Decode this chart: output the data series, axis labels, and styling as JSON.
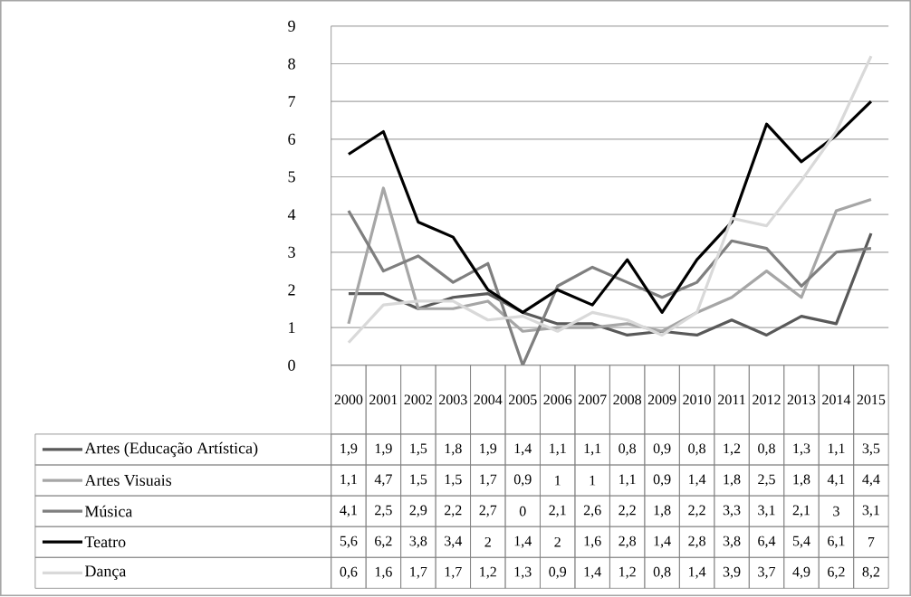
{
  "chart_data": {
    "type": "line",
    "categories": [
      "2000",
      "2001",
      "2002",
      "2003",
      "2004",
      "2005",
      "2006",
      "2007",
      "2008",
      "2009",
      "2010",
      "2011",
      "2012",
      "2013",
      "2014",
      "2015"
    ],
    "ylim": [
      0,
      9
    ],
    "yticks": [
      0,
      1,
      2,
      3,
      4,
      5,
      6,
      7,
      8,
      9
    ],
    "grid": "y",
    "legend": "bottom",
    "series": [
      {
        "name": "Artes (Educação Artística)",
        "color": "#595959",
        "values": [
          1.9,
          1.9,
          1.5,
          1.8,
          1.9,
          1.4,
          1.1,
          1.1,
          0.8,
          0.9,
          0.8,
          1.2,
          0.8,
          1.3,
          1.1,
          3.5
        ],
        "value_labels": [
          "1,9",
          "1,9",
          "1,5",
          "1,8",
          "1,9",
          "1,4",
          "1,1",
          "1,1",
          "0,8",
          "0,9",
          "0,8",
          "1,2",
          "0,8",
          "1,3",
          "1,1",
          "3,5"
        ]
      },
      {
        "name": "Artes Visuais",
        "color": "#a6a6a6",
        "values": [
          1.1,
          4.7,
          1.5,
          1.5,
          1.7,
          0.9,
          1,
          1,
          1.1,
          0.9,
          1.4,
          1.8,
          2.5,
          1.8,
          4.1,
          4.4
        ],
        "value_labels": [
          "1,1",
          "4,7",
          "1,5",
          "1,5",
          "1,7",
          "0,9",
          "1",
          "1",
          "1,1",
          "0,9",
          "1,4",
          "1,8",
          "2,5",
          "1,8",
          "4,1",
          "4,4"
        ]
      },
      {
        "name": "Música",
        "color": "#7f7f7f",
        "values": [
          4.1,
          2.5,
          2.9,
          2.2,
          2.7,
          0,
          2.1,
          2.6,
          2.2,
          1.8,
          2.2,
          3.3,
          3.1,
          2.1,
          3,
          3.1
        ],
        "value_labels": [
          "4,1",
          "2,5",
          "2,9",
          "2,2",
          "2,7",
          "0",
          "2,1",
          "2,6",
          "2,2",
          "1,8",
          "2,2",
          "3,3",
          "3,1",
          "2,1",
          "3",
          "3,1"
        ]
      },
      {
        "name": "Teatro",
        "color": "#000000",
        "values": [
          5.6,
          6.2,
          3.8,
          3.4,
          2,
          1.4,
          2,
          1.6,
          2.8,
          1.4,
          2.8,
          3.8,
          6.4,
          5.4,
          6.1,
          7
        ],
        "value_labels": [
          "5,6",
          "6,2",
          "3,8",
          "3,4",
          "2",
          "1,4",
          "2",
          "1,6",
          "2,8",
          "1,4",
          "2,8",
          "3,8",
          "6,4",
          "5,4",
          "6,1",
          "7"
        ]
      },
      {
        "name": "Dança",
        "color": "#d9d9d9",
        "values": [
          0.6,
          1.6,
          1.7,
          1.7,
          1.2,
          1.3,
          0.9,
          1.4,
          1.2,
          0.8,
          1.4,
          3.9,
          3.7,
          4.9,
          6.2,
          8.2
        ],
        "value_labels": [
          "0,6",
          "1,6",
          "1,7",
          "1,7",
          "1,2",
          "1,3",
          "0,9",
          "1,4",
          "1,2",
          "0,8",
          "1,4",
          "3,9",
          "3,7",
          "4,9",
          "6,2",
          "8,2"
        ]
      }
    ]
  }
}
